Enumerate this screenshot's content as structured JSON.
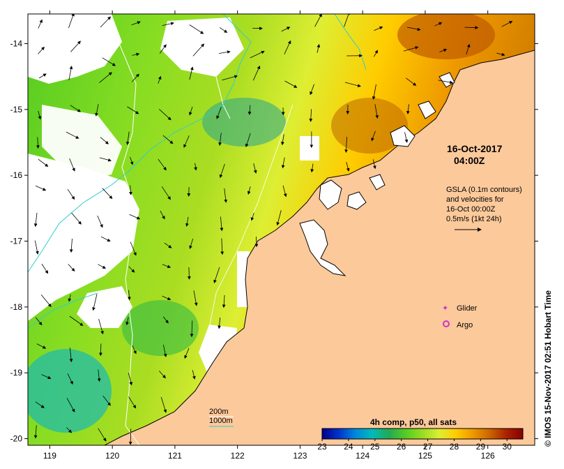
{
  "map": {
    "date_label": "16-Oct-2017",
    "time_label": "04:00Z",
    "info_lines": [
      "GSLA (0.1m contours)",
      "and velocities for",
      "16-Oct 00:00Z",
      "0.5m/s (1kt 24h)"
    ],
    "x_axis": {
      "ticks": [
        119,
        120,
        121,
        122,
        123,
        124,
        125,
        126
      ],
      "range": [
        118.65,
        126.75
      ]
    },
    "y_axis": {
      "ticks": [
        -14,
        -15,
        -16,
        -17,
        -18,
        -19,
        -20
      ],
      "range": [
        -20.1,
        -13.55
      ]
    },
    "legend": {
      "glider_label": "Glider",
      "argo_label": "Argo",
      "glider_color": "#cc33cc",
      "argo_color": "#cc33cc"
    },
    "bathymetry_legend": {
      "label_200": "200m",
      "label_1000": "1000m",
      "color_200": "#ffffff",
      "color_1000": "#33cccc"
    },
    "colorbar": {
      "title": "4h comp, p50, all sats",
      "ticks": [
        23,
        24,
        25,
        26,
        27,
        28,
        29,
        30
      ],
      "range": [
        23,
        30.6
      ],
      "colors": [
        "#00008a",
        "#0033cc",
        "#0088dd",
        "#00bbbb",
        "#22aa55",
        "#55cc22",
        "#99dd22",
        "#ddee33",
        "#ffcc00",
        "#ee9900",
        "#cc6600",
        "#aa2200",
        "#880000"
      ]
    },
    "land_color": "#fcc99b",
    "copyright": "© IMOS 15-Nov-2017 02:51 Hobart Time"
  }
}
